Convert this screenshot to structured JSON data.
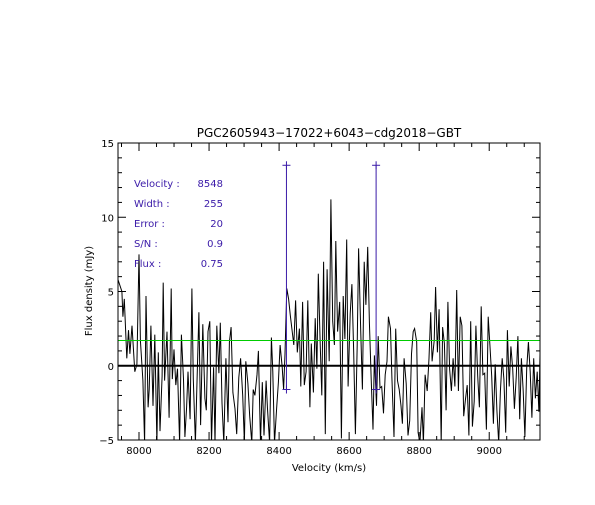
{
  "chart_data": {
    "type": "line",
    "title": "PGC2605943−17022+6043−cdg2018−GBT",
    "xlabel": "Velocity (km/s)",
    "ylabel": "Flux density (mJy)",
    "xlim": [
      7940,
      9145
    ],
    "ylim": [
      -5,
      15
    ],
    "x_ticks": [
      8000,
      8200,
      8400,
      8600,
      8800,
      9000
    ],
    "x_tick_labels": [
      "8000",
      "8200",
      "8400",
      "8600",
      "8800",
      "9000"
    ],
    "y_ticks": [
      -5,
      0,
      5,
      10,
      15
    ],
    "y_tick_labels": [
      "−5",
      "0",
      "5",
      "10",
      "15"
    ],
    "grid": false,
    "colors": {
      "spectrum": "#000000",
      "zero_line": "#000000",
      "rms_line": "#00cc00",
      "markers": "#3a1aa8",
      "annotation": "#3a1aa8"
    },
    "zero_line": 0,
    "rms_line": 1.7,
    "markers": [
      {
        "x": 8421,
        "y_top": 13.5,
        "y_bottom": -1.6
      },
      {
        "x": 8677,
        "y_top": 13.5,
        "y_bottom": -1.6
      }
    ],
    "annotation": [
      {
        "label": "Velocity :",
        "value": "8548"
      },
      {
        "label": "Width :",
        "value": "255"
      },
      {
        "label": "Error :",
        "value": "20"
      },
      {
        "label": "S/N :",
        "value": "0.9"
      },
      {
        "label": "Flux :",
        "value": "0.75"
      }
    ],
    "spectrum": {
      "x": [
        7940,
        7951,
        7954,
        7958,
        7965,
        7970,
        7974,
        7980,
        7988,
        7994,
        8000,
        8004,
        8011,
        8016,
        8020,
        8026,
        8029,
        8034,
        8040,
        8045,
        8051,
        8055,
        8060,
        8066,
        8069,
        8073,
        8080,
        8086,
        8092,
        8095,
        8100,
        8105,
        8110,
        8116,
        8121,
        8127,
        8131,
        8136,
        8140,
        8146,
        8151,
        8155,
        8161,
        8165,
        8171,
        8176,
        8182,
        8188,
        8192,
        8197,
        8202,
        8207,
        8213,
        8217,
        8222,
        8228,
        8232,
        8237,
        8242,
        8248,
        8254,
        8258,
        8263,
        8268,
        8274,
        8279,
        8285,
        8290,
        8296,
        8301,
        8305,
        8311,
        8316,
        8322,
        8326,
        8331,
        8337,
        8341,
        8347,
        8352,
        8357,
        8363,
        8367,
        8373,
        8378,
        8382,
        8387,
        8393,
        8398,
        8403,
        8409,
        8413,
        8417,
        8422,
        8427,
        8432,
        8438,
        8442,
        8447,
        8452,
        8458,
        8462,
        8467,
        8472,
        8477,
        8482,
        8488,
        8492,
        8498,
        8503,
        8508,
        8512,
        8517,
        8522,
        8527,
        8532,
        8537,
        8543,
        8548,
        8553,
        8558,
        8562,
        8567,
        8573,
        8578,
        8583,
        8588,
        8593,
        8597,
        8603,
        8608,
        8613,
        8618,
        8623,
        8627,
        8633,
        8638,
        8643,
        8648,
        8653,
        8658,
        8663,
        8668,
        8672,
        8678,
        8683,
        8688,
        8693,
        8698,
        8703,
        8708,
        8712,
        8718,
        8722,
        8728,
        8733,
        8738,
        8743,
        8748,
        8752,
        8757,
        8763,
        8768,
        8773,
        8778,
        8783,
        8787,
        8793,
        8797,
        8802,
        8808,
        8812,
        8817,
        8823,
        8828,
        8833,
        8837,
        8843,
        8847,
        8852,
        8857,
        8863,
        8867,
        8872,
        8877,
        8882,
        8887,
        8892,
        8897,
        8902,
        8907,
        8912,
        8917,
        8922,
        8927,
        8932,
        8937,
        8942,
        8947,
        8952,
        8957,
        8962,
        8967,
        8972,
        8977,
        8982,
        8987,
        8992,
        8997,
        9002,
        9007,
        9012,
        9017,
        9022,
        9027,
        9032,
        9037,
        9042,
        9047,
        9052,
        9057,
        9062,
        9067,
        9072,
        9077,
        9082,
        9087,
        9092,
        9097,
        9102,
        9107,
        9112,
        9117,
        9122,
        9127,
        9132,
        9137,
        9142,
        9145
      ],
      "y": [
        5.8,
        5.0,
        3.3,
        4.5,
        0.5,
        2.4,
        0.8,
        2.7,
        -0.4,
        0.1,
        7.5,
        1.7,
        -1.0,
        -5.2,
        4.7,
        -2.8,
        -1.6,
        2.7,
        -2.7,
        2.1,
        -5.2,
        0.9,
        -4.4,
        -0.7,
        5.6,
        -1.0,
        2.3,
        -3.5,
        5.2,
        -0.9,
        1.1,
        -1.3,
        -0.2,
        -5.2,
        2.1,
        -0.9,
        -4.8,
        -2.8,
        -0.4,
        -3.6,
        5.2,
        -0.9,
        -5.2,
        -1.6,
        3.6,
        -4.0,
        2.8,
        -2.2,
        -3.0,
        2.3,
        3.0,
        -5.2,
        -0.1,
        -5.2,
        2.7,
        -0.5,
        2.9,
        -2.5,
        -5.2,
        0.5,
        -3.8,
        1.6,
        2.6,
        -1.8,
        -2.9,
        -4.6,
        -0.8,
        0.5,
        -2.0,
        -5.2,
        0.3,
        -1.2,
        -3.4,
        -5.2,
        -1.6,
        -2.0,
        -0.6,
        1.0,
        -5.2,
        -1.1,
        -4.7,
        -1.0,
        -2.9,
        -5.2,
        1.9,
        -0.4,
        -5.2,
        -2.9,
        -1.1,
        1.4,
        -0.1,
        -1.6,
        0.8,
        5.2,
        4.5,
        3.4,
        2.2,
        1.4,
        4.4,
        0.9,
        2.5,
        -1.4,
        4.3,
        -1.3,
        -0.4,
        4.4,
        -2.8,
        1.5,
        -1.8,
        3.2,
        -0.2,
        6.2,
        1.7,
        -2.0,
        7.0,
        -4.6,
        6.5,
        0.3,
        11.2,
        3.0,
        1.4,
        8.4,
        2.3,
        4.3,
        -4.9,
        4.7,
        1.8,
        8.5,
        -1.4,
        3.5,
        5.5,
        0.9,
        -4.6,
        1.4,
        7.9,
        2.4,
        -1.6,
        7.0,
        4.1,
        8.0,
        2.9,
        -0.9,
        -4.3,
        0.7,
        -2.7,
        2.0,
        -1.5,
        -1.4,
        -3.2,
        -0.6,
        0.3,
        3.3,
        2.5,
        -0.8,
        -4.8,
        2.5,
        -1.0,
        -1.6,
        -2.7,
        -3.9,
        0.5,
        -1.2,
        -4.7,
        -3.7,
        0.8,
        2.3,
        2.5,
        1.6,
        -4.5,
        -5.2,
        -2.8,
        -5.2,
        -0.6,
        -1.7,
        0.5,
        3.6,
        0.3,
        1.7,
        5.3,
        0.9,
        3.8,
        -5.2,
        2.6,
        1.5,
        -3.0,
        4.3,
        -0.2,
        -1.7,
        0.5,
        -1.4,
        5.1,
        -1.7,
        3.3,
        2.7,
        -3.4,
        -2.3,
        -1.3,
        -4.7,
        3.0,
        -4.1,
        -2.4,
        2.7,
        -0.7,
        -2.8,
        4.0,
        -0.6,
        -0.5,
        -4.3,
        3.3,
        1.4,
        -0.7,
        -3.9,
        0.1,
        -3.0,
        -5.2,
        -1.7,
        0.5,
        -0.9,
        -4.5,
        2.4,
        -1.4,
        1.3,
        -0.2,
        -2.9,
        -0.8,
        2.0,
        -3.6,
        0.5,
        -1.7,
        -4.8,
        -0.2,
        1.6,
        -0.4,
        -3.5,
        0.5,
        -2.2,
        -0.4,
        -3.1,
        0.8
      ]
    }
  }
}
